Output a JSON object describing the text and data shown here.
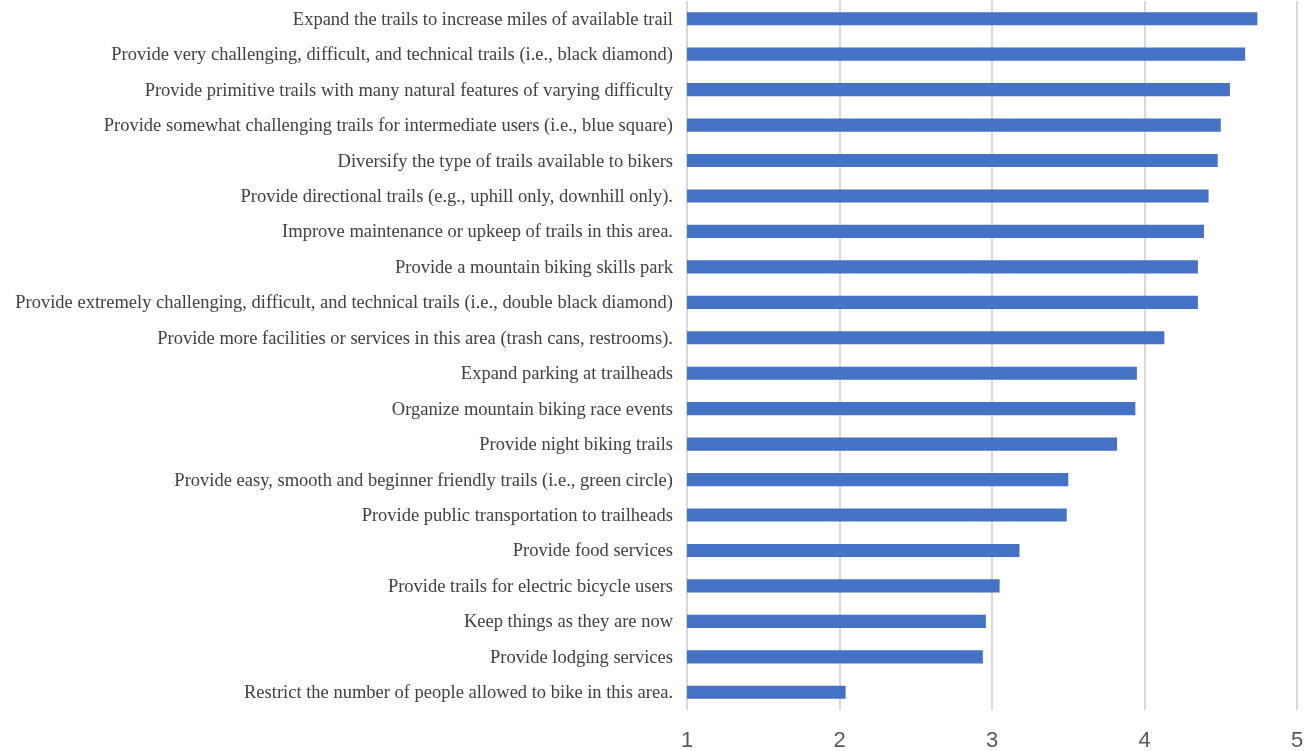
{
  "chart_data": {
    "type": "bar",
    "orientation": "horizontal",
    "categories": [
      "Expand the trails to increase miles of available trail",
      "Provide very challenging, difficult, and technical trails (i.e., black diamond)",
      "Provide primitive trails with many natural features of varying difficulty",
      "Provide somewhat challenging trails for intermediate users (i.e., blue square)",
      "Diversify the type of trails available to bikers",
      "Provide directional trails (e.g., uphill only, downhill only).",
      "Improve maintenance or upkeep of trails in this area.",
      "Provide a mountain biking skills park",
      "Provide extremely challenging, difficult, and technical trails (i.e., double black diamond)",
      "Provide more facilities or services in this area (trash cans, restrooms).",
      "Expand parking at trailheads",
      "Organize mountain biking race events",
      "Provide night biking trails",
      "Provide easy, smooth and beginner friendly trails (i.e., green circle)",
      "Provide public transportation to trailheads",
      "Provide food services",
      "Provide trails for electric bicycle users",
      "Keep things as they are now",
      "Provide lodging services",
      "Restrict the number of people allowed to bike in this area."
    ],
    "values": [
      4.74,
      4.66,
      4.56,
      4.5,
      4.48,
      4.42,
      4.39,
      4.35,
      4.35,
      4.13,
      3.95,
      3.94,
      3.82,
      3.5,
      3.49,
      3.18,
      3.05,
      2.96,
      2.94,
      2.04
    ],
    "color": "#4472c4",
    "xlim": [
      1,
      5
    ],
    "xticks": [
      1,
      2,
      3,
      4,
      5
    ],
    "grid": "x"
  }
}
